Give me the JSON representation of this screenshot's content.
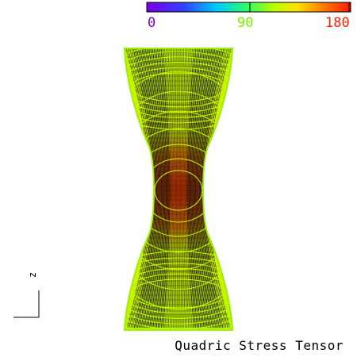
{
  "colorbar": {
    "labels": [
      "0",
      "90",
      "180"
    ],
    "label_colors": [
      "#7a00e6",
      "#7cf000",
      "#ff1a00"
    ]
  },
  "axis": {
    "label": "z"
  },
  "caption": "Quadric Stress Tensor",
  "colors": {
    "background": "#ffffff",
    "lines_dark": "#0a0a0a",
    "contour": "#c8ff00",
    "edge_outer": "#9bf000",
    "hot": "#ff4000"
  }
}
